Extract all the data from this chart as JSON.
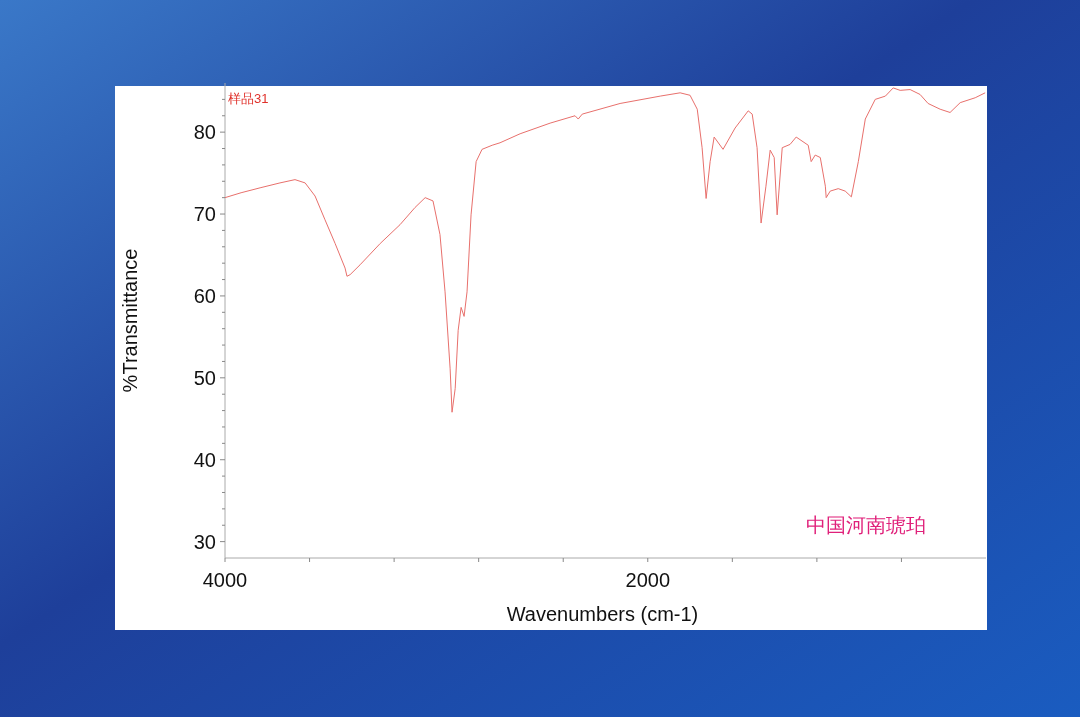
{
  "chart_data": {
    "type": "line",
    "title": "样品31",
    "xlabel": "Wavenumbers (cm-1)",
    "ylabel": "%Transmittance",
    "annotations": [
      "中国河南琥珀"
    ],
    "xlim": [
      4000,
      400
    ],
    "ylim": [
      28,
      86
    ],
    "xticks": [
      4000,
      {
        "value": 3600,
        "label": null
      },
      {
        "value": 3200,
        "label": null
      },
      {
        "value": 2800,
        "label": null
      },
      {
        "value": 2400,
        "label": null
      },
      2000,
      {
        "value": 1600,
        "label": null
      },
      {
        "value": 1200,
        "label": null
      },
      {
        "value": 800,
        "label": null
      }
    ],
    "yticks": [
      30,
      {
        "value": 32,
        "label": null
      },
      {
        "value": 34,
        "label": null
      },
      {
        "value": 36,
        "label": null
      },
      {
        "value": 38,
        "label": null
      },
      40,
      {
        "value": 42,
        "label": null
      },
      {
        "value": 44,
        "label": null
      },
      {
        "value": 46,
        "label": null
      },
      {
        "value": 48,
        "label": null
      },
      50,
      {
        "value": 52,
        "label": null
      },
      {
        "value": 54,
        "label": null
      },
      {
        "value": 56,
        "label": null
      },
      {
        "value": 58,
        "label": null
      },
      60,
      {
        "value": 62,
        "label": null
      },
      {
        "value": 64,
        "label": null
      },
      {
        "value": 66,
        "label": null
      },
      {
        "value": 68,
        "label": null
      },
      70,
      {
        "value": 72,
        "label": null
      },
      {
        "value": 74,
        "label": null
      },
      {
        "value": 76,
        "label": null
      },
      {
        "value": 78,
        "label": null
      },
      80,
      {
        "value": 82,
        "label": null
      },
      {
        "value": 84,
        "label": null
      }
    ],
    "marker": "none",
    "line_style": "solid",
    "series": [
      {
        "color": "#e8706c",
        "x": [
          4000,
          3924,
          3834,
          3740,
          3669,
          3621,
          3574,
          3527,
          3479,
          3432,
          3423,
          3408,
          3361,
          3266,
          3172,
          3101,
          3053,
          3016,
          2983,
          2959,
          2935,
          2926,
          2911,
          2897,
          2883,
          2869,
          2855,
          2836,
          2812,
          2784,
          2736,
          2699,
          2604,
          2462,
          2344,
          2329,
          2310,
          2131,
          1941,
          1847,
          1800,
          1766,
          1743,
          1724,
          1705,
          1686,
          1644,
          1587,
          1525,
          1506,
          1483,
          1464,
          1441,
          1421,
          1402,
          1388,
          1364,
          1327,
          1298,
          1241,
          1227,
          1208,
          1184,
          1160,
          1156,
          1137,
          1099,
          1066,
          1037,
          1004,
          971,
          924,
          876,
          839,
          806,
          759,
          712,
          674,
          617,
          570,
          522,
          451,
          404
        ],
        "values": [
          72.0,
          72.6,
          73.2,
          73.8,
          74.2,
          73.8,
          72.2,
          69.3,
          66.4,
          63.4,
          62.4,
          62.6,
          63.8,
          66.4,
          68.7,
          70.8,
          72.0,
          71.6,
          67.5,
          60.5,
          51.1,
          45.8,
          48.7,
          55.8,
          58.6,
          57.5,
          60.5,
          69.9,
          76.4,
          77.9,
          78.4,
          78.7,
          79.8,
          81.1,
          82.0,
          81.6,
          82.2,
          83.5,
          84.4,
          84.8,
          84.5,
          82.8,
          78.1,
          71.9,
          76.4,
          79.4,
          77.9,
          80.5,
          82.6,
          82.2,
          78.1,
          68.9,
          73.4,
          77.8,
          76.9,
          69.9,
          78.1,
          78.5,
          79.4,
          78.4,
          76.4,
          77.2,
          76.9,
          73.4,
          72.0,
          72.8,
          73.1,
          72.8,
          72.1,
          76.4,
          81.6,
          84.0,
          84.4,
          85.4,
          85.1,
          85.2,
          84.6,
          83.5,
          82.8,
          82.4,
          83.6,
          84.2,
          84.8
        ]
      }
    ]
  }
}
